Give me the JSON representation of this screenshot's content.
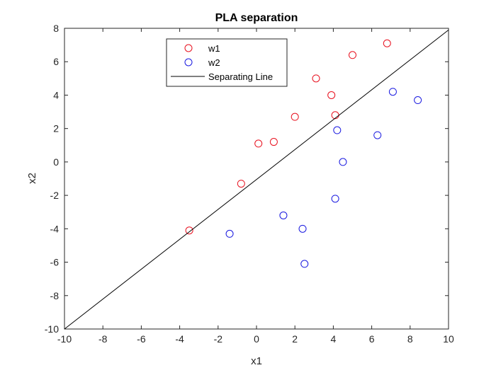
{
  "chart_data": {
    "type": "scatter",
    "title": "PLA separation",
    "xlabel": "x1",
    "ylabel": "x2",
    "xlim": [
      -10,
      10
    ],
    "ylim": [
      -10,
      8
    ],
    "xticks": [
      -10,
      -8,
      -6,
      -4,
      -2,
      0,
      2,
      4,
      6,
      8,
      10
    ],
    "yticks": [
      -10,
      -8,
      -6,
      -4,
      -2,
      0,
      2,
      4,
      6,
      8
    ],
    "grid": false,
    "legend_position": "top-center",
    "series": [
      {
        "name": "w1",
        "marker": "circle",
        "color": "#e8111f",
        "points": [
          {
            "x": -3.5,
            "y": -4.1
          },
          {
            "x": -0.8,
            "y": -1.3
          },
          {
            "x": 0.1,
            "y": 1.1
          },
          {
            "x": 0.9,
            "y": 1.2
          },
          {
            "x": 2.0,
            "y": 2.7
          },
          {
            "x": 3.1,
            "y": 5.0
          },
          {
            "x": 3.9,
            "y": 4.0
          },
          {
            "x": 4.1,
            "y": 2.8
          },
          {
            "x": 5.0,
            "y": 6.4
          },
          {
            "x": 6.8,
            "y": 7.1
          }
        ]
      },
      {
        "name": "w2",
        "marker": "circle",
        "color": "#1a1ae0",
        "points": [
          {
            "x": -1.4,
            "y": -4.3
          },
          {
            "x": 1.4,
            "y": -3.2
          },
          {
            "x": 2.4,
            "y": -4.0
          },
          {
            "x": 2.5,
            "y": -6.1
          },
          {
            "x": 4.1,
            "y": -2.2
          },
          {
            "x": 4.2,
            "y": 1.9
          },
          {
            "x": 4.5,
            "y": 0.0
          },
          {
            "x": 6.3,
            "y": 1.6
          },
          {
            "x": 7.1,
            "y": 4.2
          },
          {
            "x": 8.4,
            "y": 3.7
          }
        ]
      },
      {
        "name": "Separating Line",
        "type": "line",
        "color": "#000000",
        "points": [
          {
            "x": -10,
            "y": -10
          },
          {
            "x": 10,
            "y": 7.9
          }
        ]
      }
    ]
  }
}
